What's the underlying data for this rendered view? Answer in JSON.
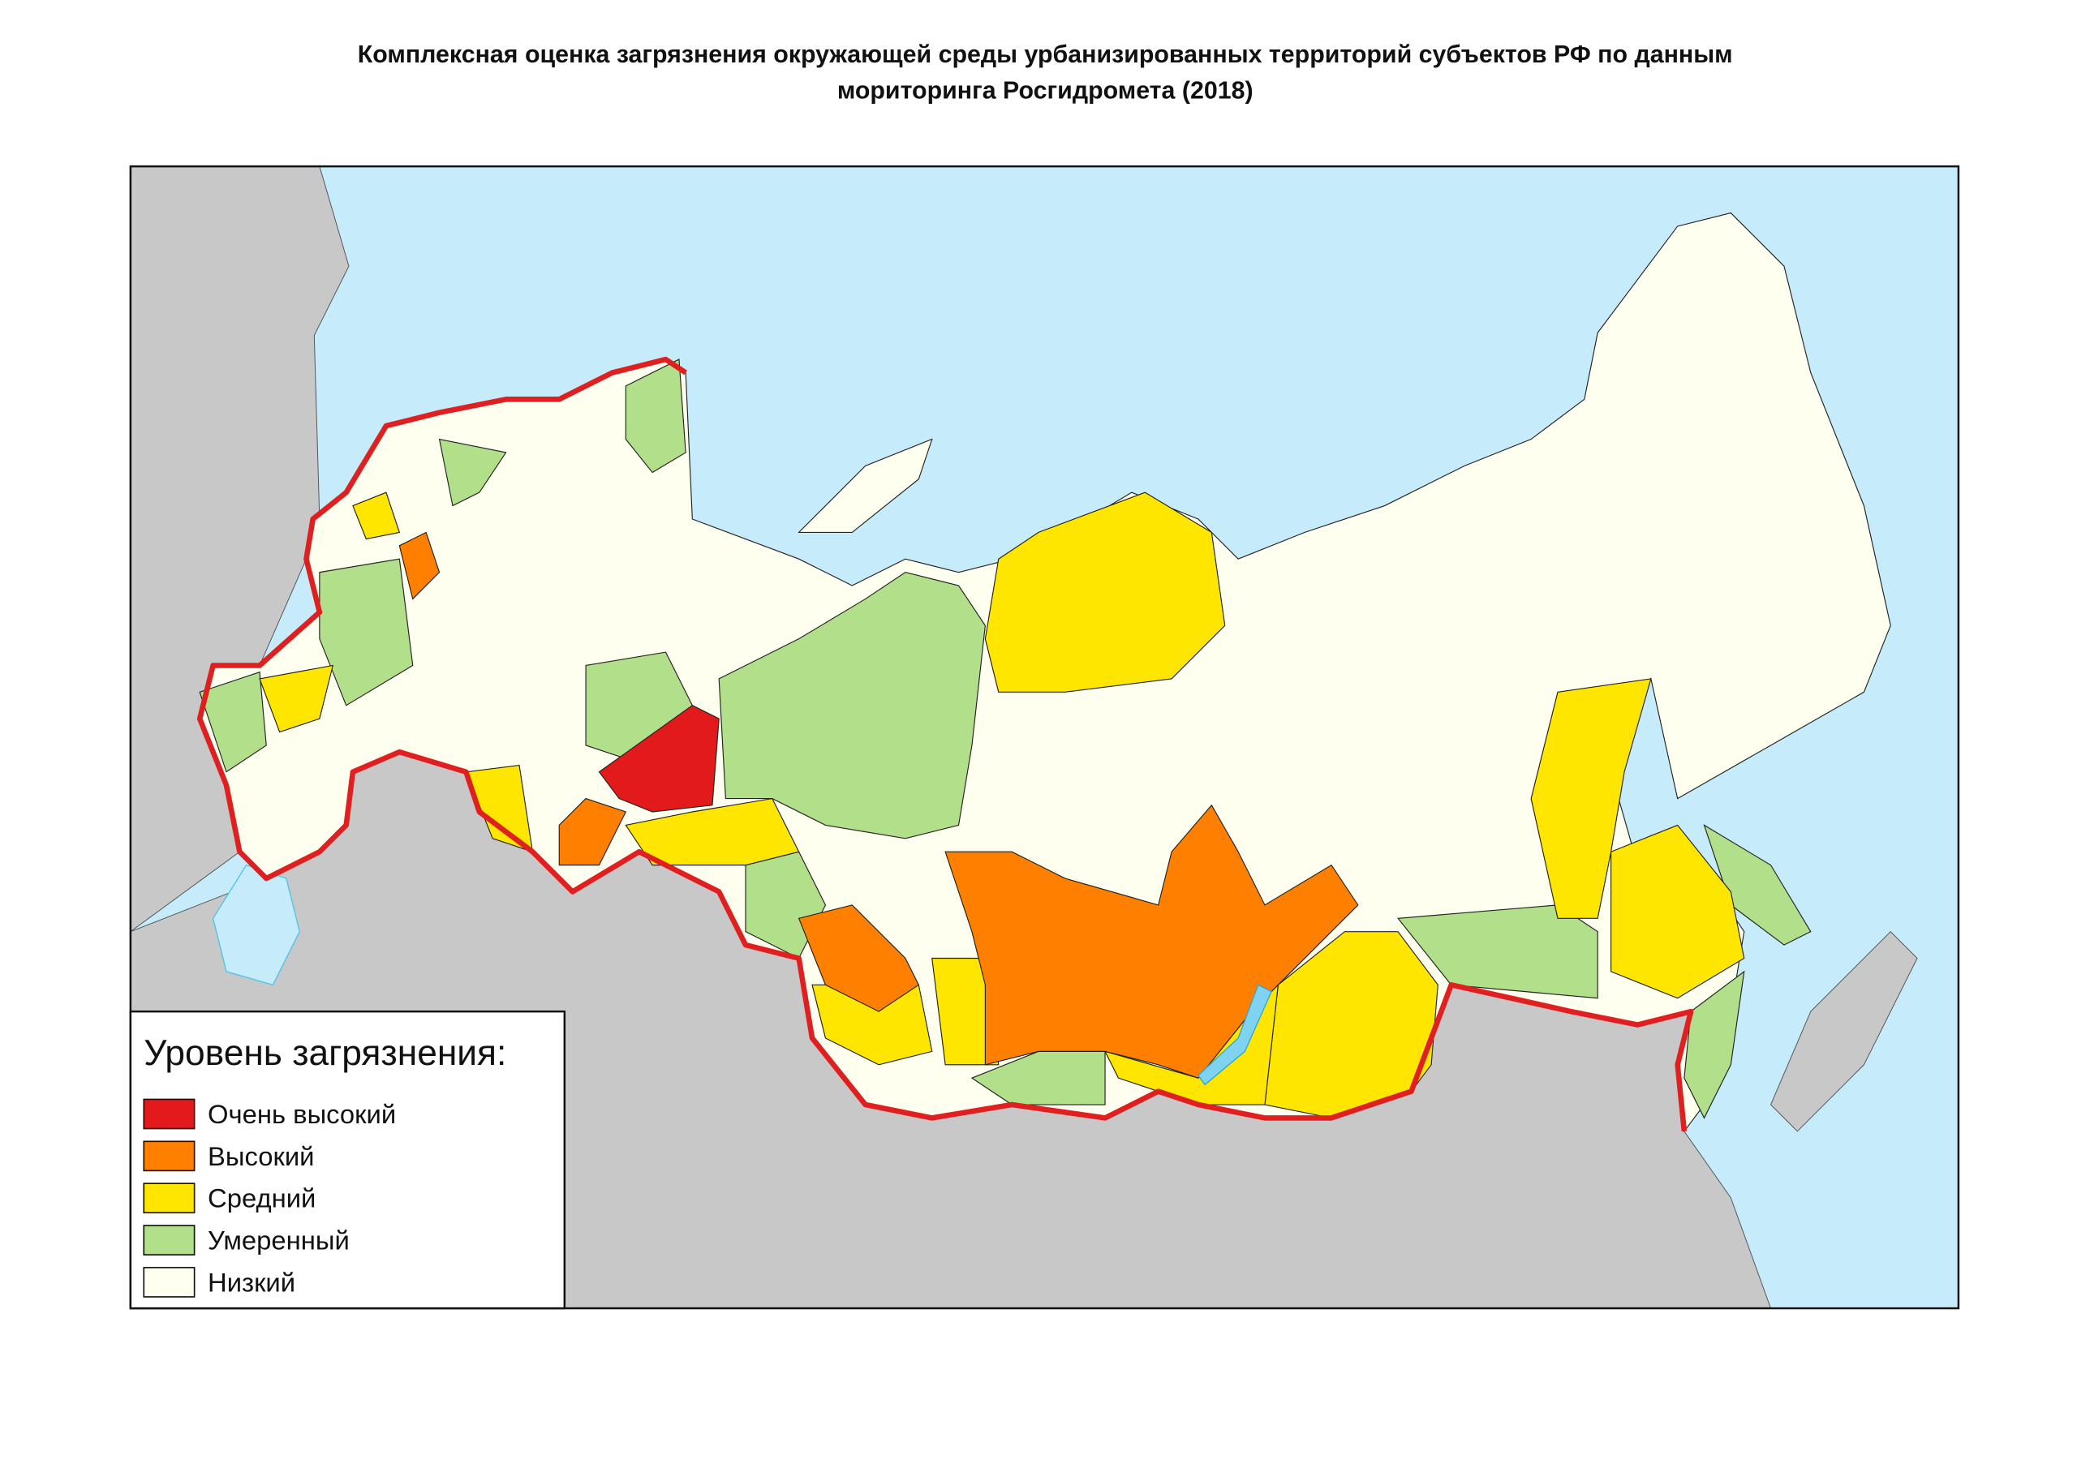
{
  "header": {
    "title_lines": [
      "Комплексная оценка загрязнения окружающей среды урбанизированных территорий субъектов РФ по данным",
      "мориторинга Росгидромета (2018)"
    ]
  },
  "legend": {
    "title": "Уровень загрязнения:",
    "items": [
      {
        "label": "Очень высокий",
        "color": "#e31a1c"
      },
      {
        "label": "Высокий",
        "color": "#ff7f00"
      },
      {
        "label": "Средний",
        "color": "#ffe600"
      },
      {
        "label": "Умеренный",
        "color": "#b2df8a"
      },
      {
        "label": "Низкий",
        "color": "#fffff0"
      }
    ]
  }
}
